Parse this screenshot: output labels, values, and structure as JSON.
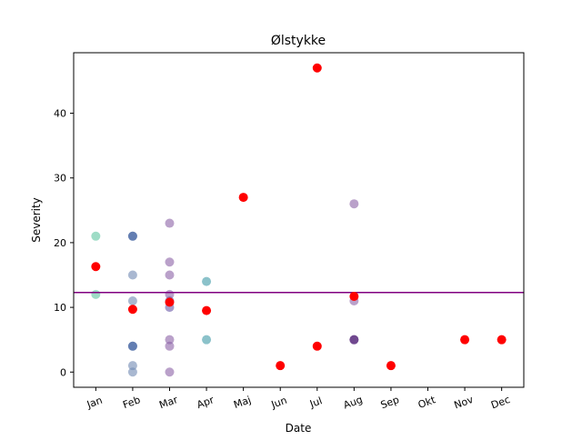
{
  "chart_data": {
    "type": "scatter",
    "title": "Ølstykke",
    "xlabel": "Date",
    "ylabel": "Severity",
    "categories": [
      "Jan",
      "Feb",
      "Mar",
      "Apr",
      "Maj",
      "Jun",
      "Jul",
      "Aug",
      "Sep",
      "Okt",
      "Nov",
      "Dec"
    ],
    "xlim": [
      -0.6,
      11.6
    ],
    "ylim": [
      -2.35,
      49.35
    ],
    "yticks": [
      0,
      10,
      20,
      30,
      40
    ],
    "grid": false,
    "hline": {
      "y": 12.3,
      "color": "#800080"
    },
    "scatter_points": [
      {
        "x": 0,
        "y": 21,
        "color": "#5ec4a0"
      },
      {
        "x": 0,
        "y": 12,
        "color": "#5ec4a0"
      },
      {
        "x": 1,
        "y": 21,
        "color": "#3d5a98"
      },
      {
        "x": 1,
        "y": 21,
        "color": "#4a6aa8"
      },
      {
        "x": 1,
        "y": 15,
        "color": "#6f88b3"
      },
      {
        "x": 1,
        "y": 11,
        "color": "#6f88b3"
      },
      {
        "x": 1,
        "y": 4,
        "color": "#3d5a98"
      },
      {
        "x": 1,
        "y": 4,
        "color": "#4a6aa8"
      },
      {
        "x": 1,
        "y": 1,
        "color": "#6f88b3"
      },
      {
        "x": 1,
        "y": 0,
        "color": "#6f88b3"
      },
      {
        "x": 2,
        "y": 23,
        "color": "#8c62a6"
      },
      {
        "x": 2,
        "y": 17,
        "color": "#8c62a6"
      },
      {
        "x": 2,
        "y": 15,
        "color": "#8c62a6"
      },
      {
        "x": 2,
        "y": 12,
        "color": "#8c62a6"
      },
      {
        "x": 2,
        "y": 11,
        "color": "#6b5aa8"
      },
      {
        "x": 2,
        "y": 10,
        "color": "#6b5aa8"
      },
      {
        "x": 2,
        "y": 5,
        "color": "#8c62a6"
      },
      {
        "x": 2,
        "y": 4,
        "color": "#8c62a6"
      },
      {
        "x": 2,
        "y": 0,
        "color": "#8c62a6"
      },
      {
        "x": 3,
        "y": 14,
        "color": "#3d9aa6"
      },
      {
        "x": 3,
        "y": 5,
        "color": "#3d9aa6"
      },
      {
        "x": 7,
        "y": 26,
        "color": "#8c62a6"
      },
      {
        "x": 7,
        "y": 11,
        "color": "#8c62a6"
      },
      {
        "x": 7,
        "y": 5,
        "color": "#4a1a6e"
      },
      {
        "x": 7,
        "y": 5,
        "color": "#5a2a7e"
      }
    ],
    "mean_points": [
      {
        "x": 0,
        "y": 16.3
      },
      {
        "x": 1,
        "y": 9.7
      },
      {
        "x": 2,
        "y": 10.8
      },
      {
        "x": 3,
        "y": 9.5
      },
      {
        "x": 4,
        "y": 27
      },
      {
        "x": 5,
        "y": 1
      },
      {
        "x": 6,
        "y": 47
      },
      {
        "x": 6,
        "y": 4
      },
      {
        "x": 7,
        "y": 11.7
      },
      {
        "x": 8,
        "y": 1
      },
      {
        "x": 10,
        "y": 5
      },
      {
        "x": 11,
        "y": 5
      }
    ],
    "mean_color": "#ff0000"
  }
}
